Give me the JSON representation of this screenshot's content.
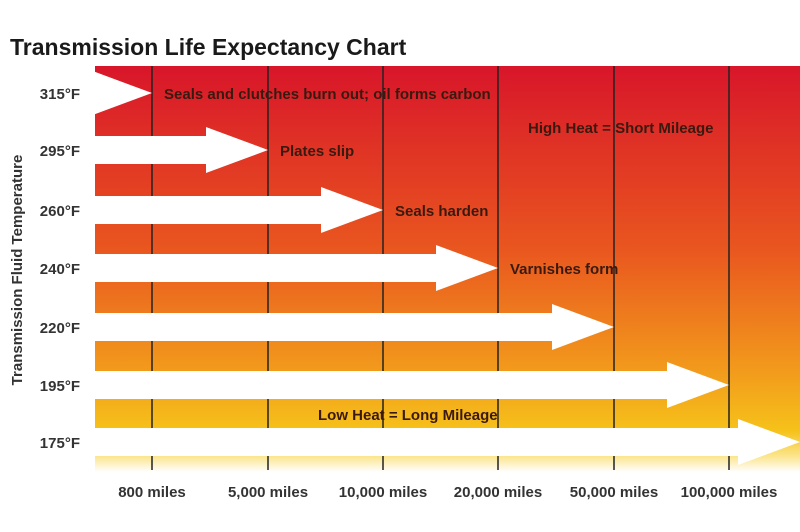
{
  "chart_data": {
    "type": "bar",
    "orientation": "horizontal",
    "title": "Transmission Life Expectancy Chart",
    "ylabel": "Transmission Fluid Temperature",
    "xlabel": "",
    "x_tick_labels": [
      "800 miles",
      "5,000 miles",
      "10,000 miles",
      "20,000 miles",
      "50,000 miles",
      "100,000 miles"
    ],
    "x_ticks": [
      800,
      5000,
      10000,
      20000,
      50000,
      100000
    ],
    "categories": [
      "315°F",
      "295°F",
      "260°F",
      "240°F",
      "220°F",
      "195°F",
      "175°F"
    ],
    "values": [
      800,
      5000,
      10000,
      20000,
      50000,
      100000,
      ">100,000"
    ],
    "bar_labels": [
      "Seals and clutches burn out; oil forms carbon",
      "Plates slip",
      "Seals harden",
      "Varnishes form",
      "",
      "",
      ""
    ],
    "annotations": [
      "High Heat = Short Mileage",
      "Low Heat = Long Mileage"
    ],
    "grid": "vertical",
    "colors": {
      "background_top": "#d8162a",
      "background_middle": "#ef6a1e",
      "background_bottom": "#f6c21a",
      "arrows": "#ffffff",
      "gridlines": "#222222"
    }
  }
}
